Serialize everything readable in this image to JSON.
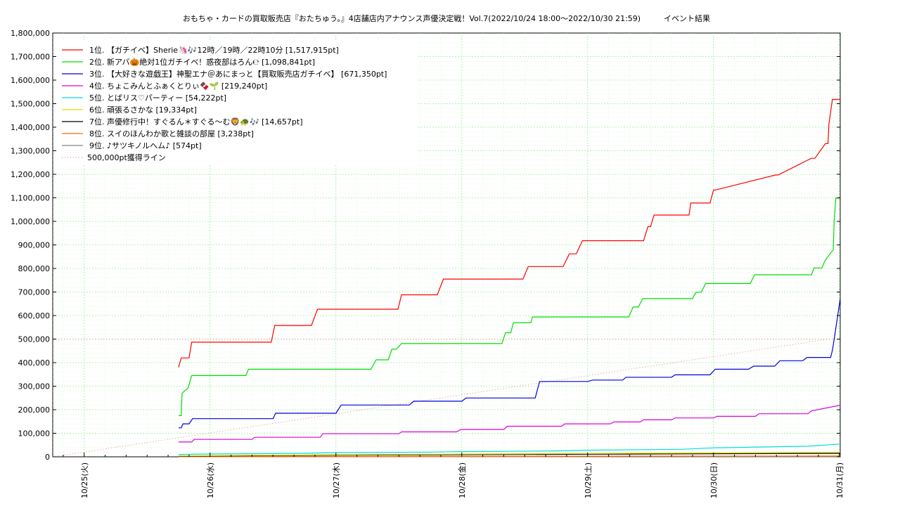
{
  "chart_data": {
    "type": "line",
    "title": "おもちゃ・カードの買取販売店『おたちゅう。』4店舗店内アナウンス声優決定戦！Vol.7(2022/10/24 18:00～2022/10/30 21:59)　　　イベント結果",
    "xlabel": "",
    "ylabel": "",
    "grid": true,
    "legend_position": "top-left",
    "x_range": [
      "2022-10-24 18:00",
      "2022-10-31 00:10"
    ],
    "ylim": [
      0,
      1800000
    ],
    "y_ticks": [
      0,
      100000,
      200000,
      300000,
      400000,
      500000,
      600000,
      700000,
      800000,
      900000,
      1000000,
      1100000,
      1200000,
      1300000,
      1400000,
      1500000,
      1600000,
      1700000,
      1800000
    ],
    "y_tick_labels": [
      "0",
      "100,000",
      "200,000",
      "300,000",
      "400,000",
      "500,000",
      "600,000",
      "700,000",
      "800,000",
      "900,000",
      "1,000,000",
      "1,100,000",
      "1,200,000",
      "1,300,000",
      "1,400,000",
      "1,500,000",
      "1,600,000",
      "1,700,000",
      "1,800,000"
    ],
    "x_ticks": [
      "2022-10-25 00:00",
      "2022-10-26 00:00",
      "2022-10-27 00:00",
      "2022-10-28 00:00",
      "2022-10-29 00:00",
      "2022-10-30 00:00",
      "2022-10-31 00:00"
    ],
    "x_tick_labels": [
      "10/25(火)",
      "10/26(水)",
      "10/27(木)",
      "10/28(金)",
      "10/29(土)",
      "10/30(日)",
      "10/31(月)"
    ],
    "series": [
      {
        "name": "1位. 【ガチイベ】Sherie🦄🎶12時／19時／22時10分 [1,517,915pt]",
        "color": "#ff0000",
        "x": [
          "2022-10-25 18:00",
          "2022-10-25 18:30",
          "2022-10-25 20:00",
          "2022-10-25 20:30",
          "2022-10-26 11:40",
          "2022-10-26 12:20",
          "2022-10-26 19:20",
          "2022-10-26 20:30",
          "2022-10-27 11:50",
          "2022-10-27 12:30",
          "2022-10-27 19:20",
          "2022-10-27 20:30",
          "2022-10-28 11:40",
          "2022-10-28 12:40",
          "2022-10-28 19:20",
          "2022-10-28 20:30",
          "2022-10-28 21:50",
          "2022-10-28 23:00",
          "2022-10-29 10:40",
          "2022-10-29 11:30",
          "2022-10-29 12:00",
          "2022-10-29 12:40",
          "2022-10-29 19:20",
          "2022-10-29 19:40",
          "2022-10-29 23:20",
          "2022-10-30 00:00",
          "2022-10-30 00:20",
          "2022-10-30 11:50",
          "2022-10-30 12:20",
          "2022-10-30 18:40",
          "2022-10-30 19:20",
          "2022-10-30 21:20",
          "2022-10-30 21:50",
          "2022-10-30 22:00",
          "2022-10-30 22:40",
          "2022-10-31 00:10"
        ],
        "values": [
          380000,
          420000,
          420000,
          487000,
          487000,
          558000,
          558000,
          627000,
          627000,
          688000,
          688000,
          755000,
          755000,
          808000,
          808000,
          862000,
          862000,
          918000,
          918000,
          978000,
          978000,
          1027000,
          1027000,
          1078000,
          1078000,
          1133000,
          1133000,
          1197000,
          1197000,
          1268000,
          1268000,
          1330000,
          1330000,
          1410000,
          1518000,
          1518000
        ]
      },
      {
        "name": "2位. 新アバ🎃絶対1位ガチイベ！惑夜部はろん℮ [1,098,841pt]",
        "color": "#00dd00",
        "x": [
          "2022-10-25 18:00",
          "2022-10-25 18:30",
          "2022-10-25 18:40",
          "2022-10-25 19:50",
          "2022-10-25 20:30",
          "2022-10-26 06:50",
          "2022-10-26 07:20",
          "2022-10-27 06:40",
          "2022-10-27 07:40",
          "2022-10-27 10:00",
          "2022-10-27 10:40",
          "2022-10-27 11:30",
          "2022-10-27 12:30",
          "2022-10-28 07:40",
          "2022-10-28 08:20",
          "2022-10-28 09:20",
          "2022-10-28 09:50",
          "2022-10-28 13:10",
          "2022-10-28 13:30",
          "2022-10-29 07:50",
          "2022-10-29 08:40",
          "2022-10-29 09:40",
          "2022-10-29 10:30",
          "2022-10-29 20:00",
          "2022-10-29 20:40",
          "2022-10-29 21:40",
          "2022-10-29 22:30",
          "2022-10-30 07:00",
          "2022-10-30 07:50",
          "2022-10-30 18:40",
          "2022-10-30 19:10",
          "2022-10-30 20:40",
          "2022-10-30 21:20",
          "2022-10-30 22:50",
          "2022-10-30 23:00",
          "2022-10-30 23:20",
          "2022-10-31 00:10"
        ],
        "values": [
          175000,
          175000,
          270000,
          293000,
          345000,
          345000,
          372000,
          372000,
          412000,
          412000,
          457000,
          457000,
          481000,
          481000,
          527000,
          527000,
          570000,
          570000,
          594000,
          594000,
          636000,
          636000,
          672000,
          672000,
          699000,
          699000,
          736000,
          736000,
          773000,
          773000,
          802000,
          802000,
          836000,
          880000,
          1000000,
          1099000,
          1099000
        ]
      },
      {
        "name": "3位. 【大好きな遊戯王】神聖エナ＠あにまっと【買取販売店ガチイベ】 [671,350pt]",
        "color": "#0000dd",
        "x": [
          "2022-10-25 18:00",
          "2022-10-25 18:30",
          "2022-10-25 18:50",
          "2022-10-25 20:00",
          "2022-10-25 20:40",
          "2022-10-26 12:00",
          "2022-10-26 12:30",
          "2022-10-27 00:00",
          "2022-10-27 01:00",
          "2022-10-27 14:00",
          "2022-10-27 14:50",
          "2022-10-28 00:00",
          "2022-10-28 00:50",
          "2022-10-28 14:00",
          "2022-10-28 14:50",
          "2022-10-29 00:00",
          "2022-10-29 01:00",
          "2022-10-29 06:40",
          "2022-10-29 07:20",
          "2022-10-29 16:00",
          "2022-10-29 16:40",
          "2022-10-29 23:20",
          "2022-10-30 00:20",
          "2022-10-30 06:40",
          "2022-10-30 07:40",
          "2022-10-30 11:40",
          "2022-10-30 12:40",
          "2022-10-30 17:00",
          "2022-10-30 17:50",
          "2022-10-30 22:20",
          "2022-10-30 22:40",
          "2022-10-30 22:50",
          "2022-10-31 00:10"
        ],
        "values": [
          123000,
          123000,
          140000,
          140000,
          162000,
          162000,
          185000,
          185000,
          220000,
          220000,
          236000,
          236000,
          250000,
          250000,
          320000,
          320000,
          326000,
          326000,
          338000,
          338000,
          348000,
          348000,
          372000,
          372000,
          385000,
          385000,
          408000,
          408000,
          422000,
          422000,
          452000,
          475000,
          671000
        ]
      },
      {
        "name": "4位. ちょこみんとふぁくとりぃ🍫🌱 [219,240pt]",
        "color": "#dd00dd",
        "x": [
          "2022-10-25 18:00",
          "2022-10-25 20:30",
          "2022-10-25 21:00",
          "2022-10-26 08:00",
          "2022-10-26 08:30",
          "2022-10-26 21:00",
          "2022-10-26 21:30",
          "2022-10-27 12:00",
          "2022-10-27 12:30",
          "2022-10-27 23:00",
          "2022-10-27 23:50",
          "2022-10-28 08:00",
          "2022-10-28 08:40",
          "2022-10-28 19:00",
          "2022-10-28 19:40",
          "2022-10-29 04:20",
          "2022-10-29 05:00",
          "2022-10-29 10:00",
          "2022-10-29 10:40",
          "2022-10-29 16:00",
          "2022-10-29 16:40",
          "2022-10-30 00:00",
          "2022-10-30 00:40",
          "2022-10-30 08:00",
          "2022-10-30 08:40",
          "2022-10-30 18:00",
          "2022-10-30 18:40",
          "2022-10-31 00:10"
        ],
        "values": [
          63000,
          63000,
          74000,
          74000,
          83000,
          83000,
          98000,
          98000,
          106000,
          106000,
          116000,
          116000,
          130000,
          130000,
          140000,
          140000,
          148000,
          148000,
          157000,
          157000,
          165000,
          165000,
          172000,
          172000,
          183000,
          183000,
          195000,
          219000
        ]
      },
      {
        "name": "5位. とばリス♡パーティー [54,222pt]",
        "color": "#00dddd",
        "x": [
          "2022-10-25 18:00",
          "2022-10-26 00:00",
          "2022-10-26 18:00",
          "2022-10-27 00:00",
          "2022-10-27 18:00",
          "2022-10-28 00:00",
          "2022-10-28 18:00",
          "2022-10-29 00:00",
          "2022-10-29 18:00",
          "2022-10-30 00:00",
          "2022-10-30 18:00",
          "2022-10-31 00:10"
        ],
        "values": [
          10000,
          12000,
          15000,
          18000,
          20000,
          22000,
          25000,
          28000,
          32000,
          38000,
          45000,
          54222
        ]
      },
      {
        "name": "6位. 頑張るさかな [19,334pt]",
        "color": "#dddd00",
        "x": [
          "2022-10-25 18:00",
          "2022-10-27 00:00",
          "2022-10-29 00:00",
          "2022-10-31 00:10"
        ],
        "values": [
          4000,
          9000,
          14000,
          19334
        ]
      },
      {
        "name": "7位. 声優修行中！すぐるん＊すぐる〜む🦁🐢🎶 [14,657pt]",
        "color": "#000000",
        "x": [
          "2022-10-25 18:00",
          "2022-10-27 00:00",
          "2022-10-29 00:00",
          "2022-10-31 00:10"
        ],
        "values": [
          3000,
          7000,
          11000,
          14657
        ]
      },
      {
        "name": "8位. スイのほんわか歌と雑談の部屋 [3,238pt]",
        "color": "#ff6600",
        "x": [
          "2022-10-25 18:00",
          "2022-10-31 00:10"
        ],
        "values": [
          1000,
          3238
        ]
      },
      {
        "name": "9位. ♪サツキノルへム♪ [574pt]",
        "color": "#888888",
        "x": [
          "2022-10-25 18:00",
          "2022-10-31 00:10"
        ],
        "values": [
          200,
          574
        ]
      }
    ],
    "reference_line": {
      "name": "500,000pt獲得ライン",
      "color": "#ee8888",
      "x": [
        "2022-10-24 18:00",
        "2022-10-30 21:59"
      ],
      "values": [
        0,
        500000
      ],
      "horizontal_value": 500000
    }
  }
}
